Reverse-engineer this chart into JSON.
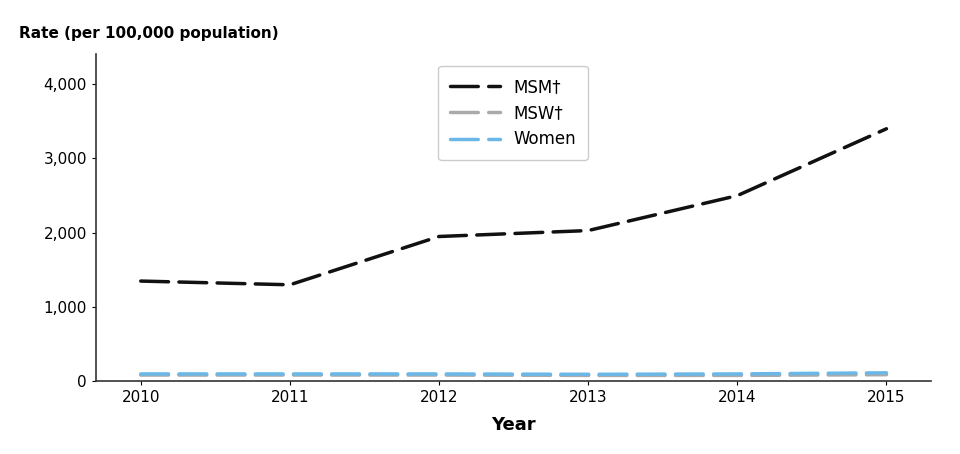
{
  "years": [
    2010,
    2011,
    2012,
    2013,
    2014,
    2015
  ],
  "msm": [
    1350,
    1300,
    1950,
    2030,
    2500,
    3400
  ],
  "msw": [
    85,
    85,
    85,
    80,
    80,
    90
  ],
  "women": [
    100,
    100,
    100,
    95,
    100,
    115
  ],
  "msm_color": "#111111",
  "msw_color": "#aaaaaa",
  "women_color": "#6bb8e8",
  "ylabel_text": "Rate (per 100,000 population)",
  "xlabel": "Year",
  "ylim": [
    0,
    4400
  ],
  "yticks": [
    0,
    1000,
    2000,
    3000,
    4000
  ],
  "legend_labels": [
    "MSM†",
    "MSW†",
    "Women"
  ],
  "figsize": [
    9.6,
    4.54
  ],
  "dpi": 100
}
